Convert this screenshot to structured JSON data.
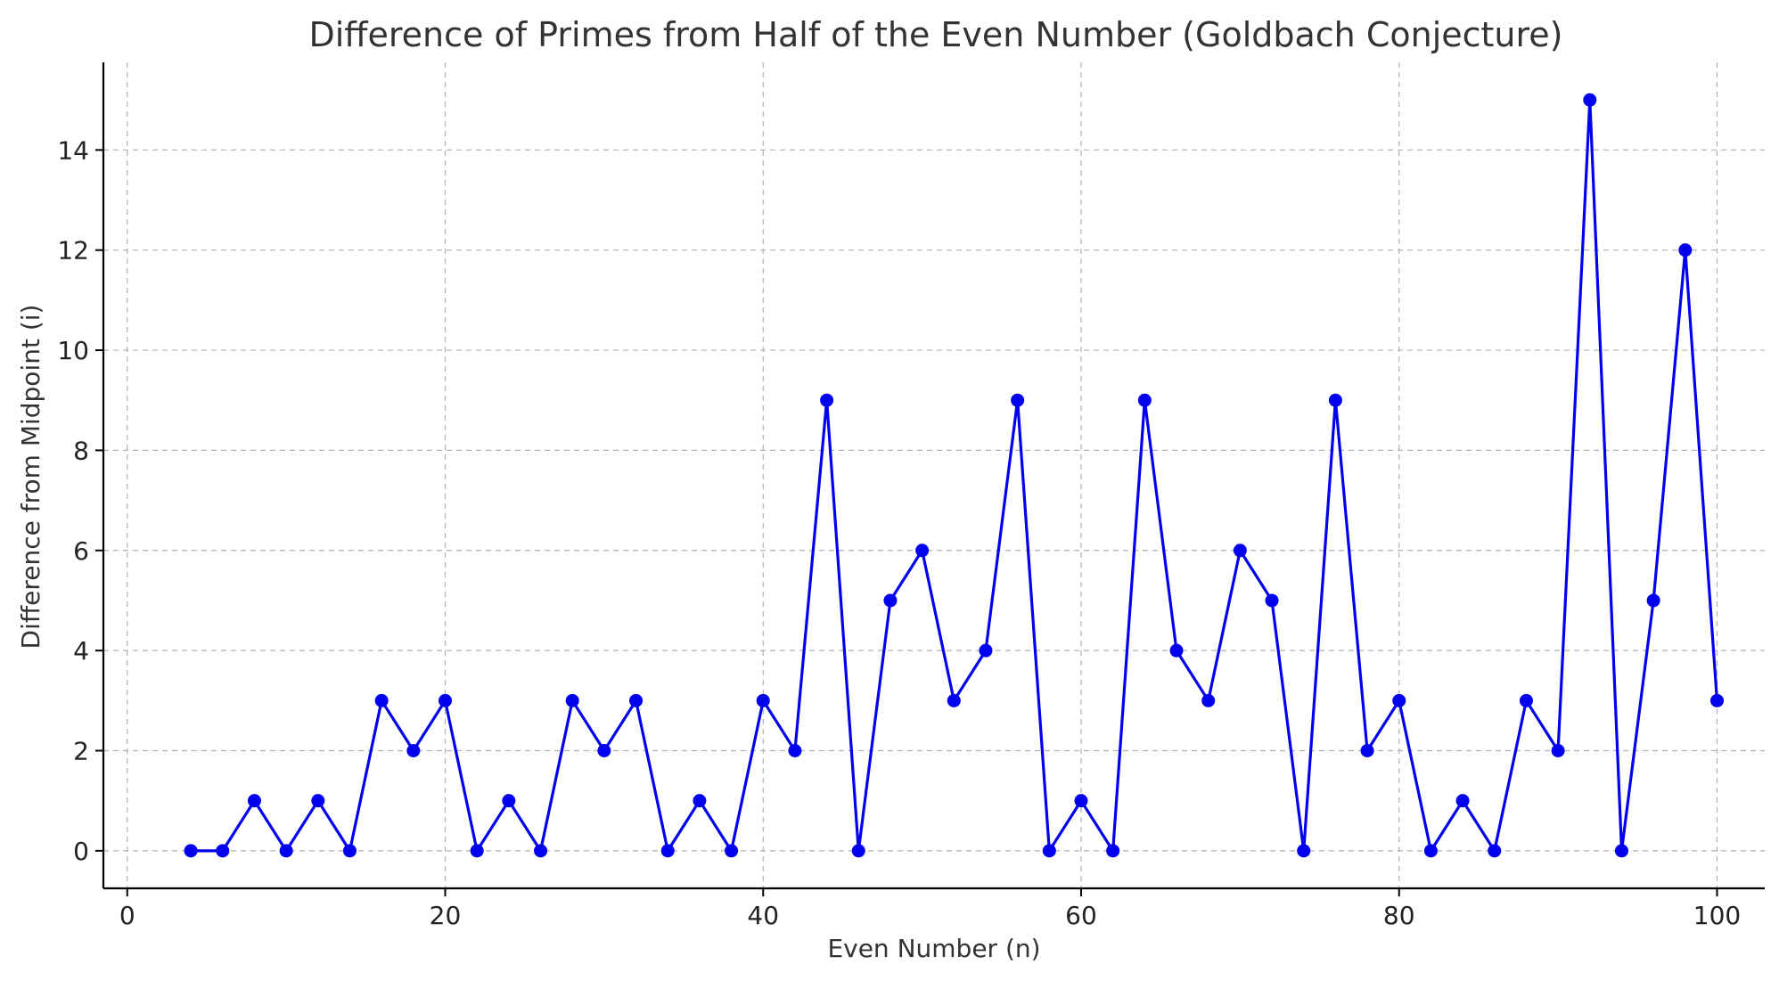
{
  "chart_data": {
    "type": "line",
    "title": "Difference of Primes from Half of the Even Number (Goldbach Conjecture)",
    "xlabel": "Even Number (n)",
    "ylabel": "Difference from Midpoint (i)",
    "xlim": [
      -1.5,
      103
    ],
    "ylim": [
      -0.75,
      15.75
    ],
    "xticks": [
      0,
      20,
      40,
      60,
      80,
      100
    ],
    "yticks": [
      0,
      2,
      4,
      6,
      8,
      10,
      12,
      14
    ],
    "grid": true,
    "line_color": "#0000ee",
    "series": [
      {
        "x": [
          4,
          6,
          8,
          10,
          12,
          14,
          16,
          18,
          20,
          22,
          24,
          26,
          28,
          30,
          32,
          34,
          36,
          38,
          40,
          42,
          44,
          46,
          48,
          50,
          52,
          54,
          56,
          58,
          60,
          62,
          64,
          66,
          68,
          70,
          72,
          74,
          76,
          78,
          80,
          82,
          84,
          86,
          88,
          90,
          92,
          94,
          96,
          98,
          100
        ],
        "values": [
          0,
          0,
          1,
          0,
          1,
          0,
          3,
          2,
          3,
          0,
          1,
          0,
          3,
          2,
          3,
          0,
          1,
          0,
          3,
          2,
          9,
          0,
          5,
          6,
          3,
          4,
          9,
          0,
          1,
          0,
          9,
          4,
          3,
          6,
          5,
          0,
          9,
          2,
          3,
          0,
          1,
          0,
          3,
          2,
          15,
          0,
          5,
          12,
          3
        ]
      }
    ]
  }
}
